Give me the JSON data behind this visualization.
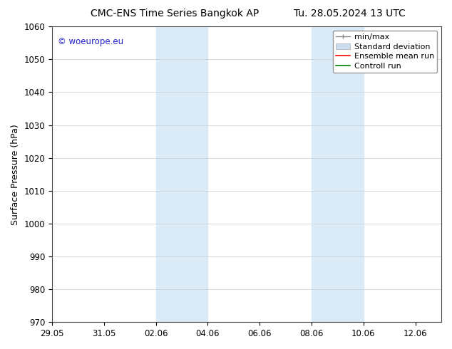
{
  "title_left": "CMC-ENS Time Series Bangkok AP",
  "title_right": "Tu. 28.05.2024 13 UTC",
  "ylabel": "Surface Pressure (hPa)",
  "ylim": [
    970,
    1060
  ],
  "yticks": [
    970,
    980,
    990,
    1000,
    1010,
    1020,
    1030,
    1040,
    1050,
    1060
  ],
  "xtick_labels": [
    "29.05",
    "31.05",
    "02.06",
    "04.06",
    "06.06",
    "08.06",
    "10.06",
    "12.06"
  ],
  "xtick_positions": [
    0,
    2,
    4,
    6,
    8,
    10,
    12,
    14
  ],
  "xlim": [
    0,
    15
  ],
  "shaded_bands": [
    {
      "start": 4,
      "end": 6
    },
    {
      "start": 10,
      "end": 12
    }
  ],
  "shaded_color": "#daeaf7",
  "watermark_text": "© woeurope.eu",
  "watermark_color": "#2222cc",
  "bg_color": "#ffffff",
  "grid_color": "#cccccc",
  "title_fontsize": 10,
  "tick_fontsize": 8.5,
  "ylabel_fontsize": 9,
  "legend_fontsize": 8
}
